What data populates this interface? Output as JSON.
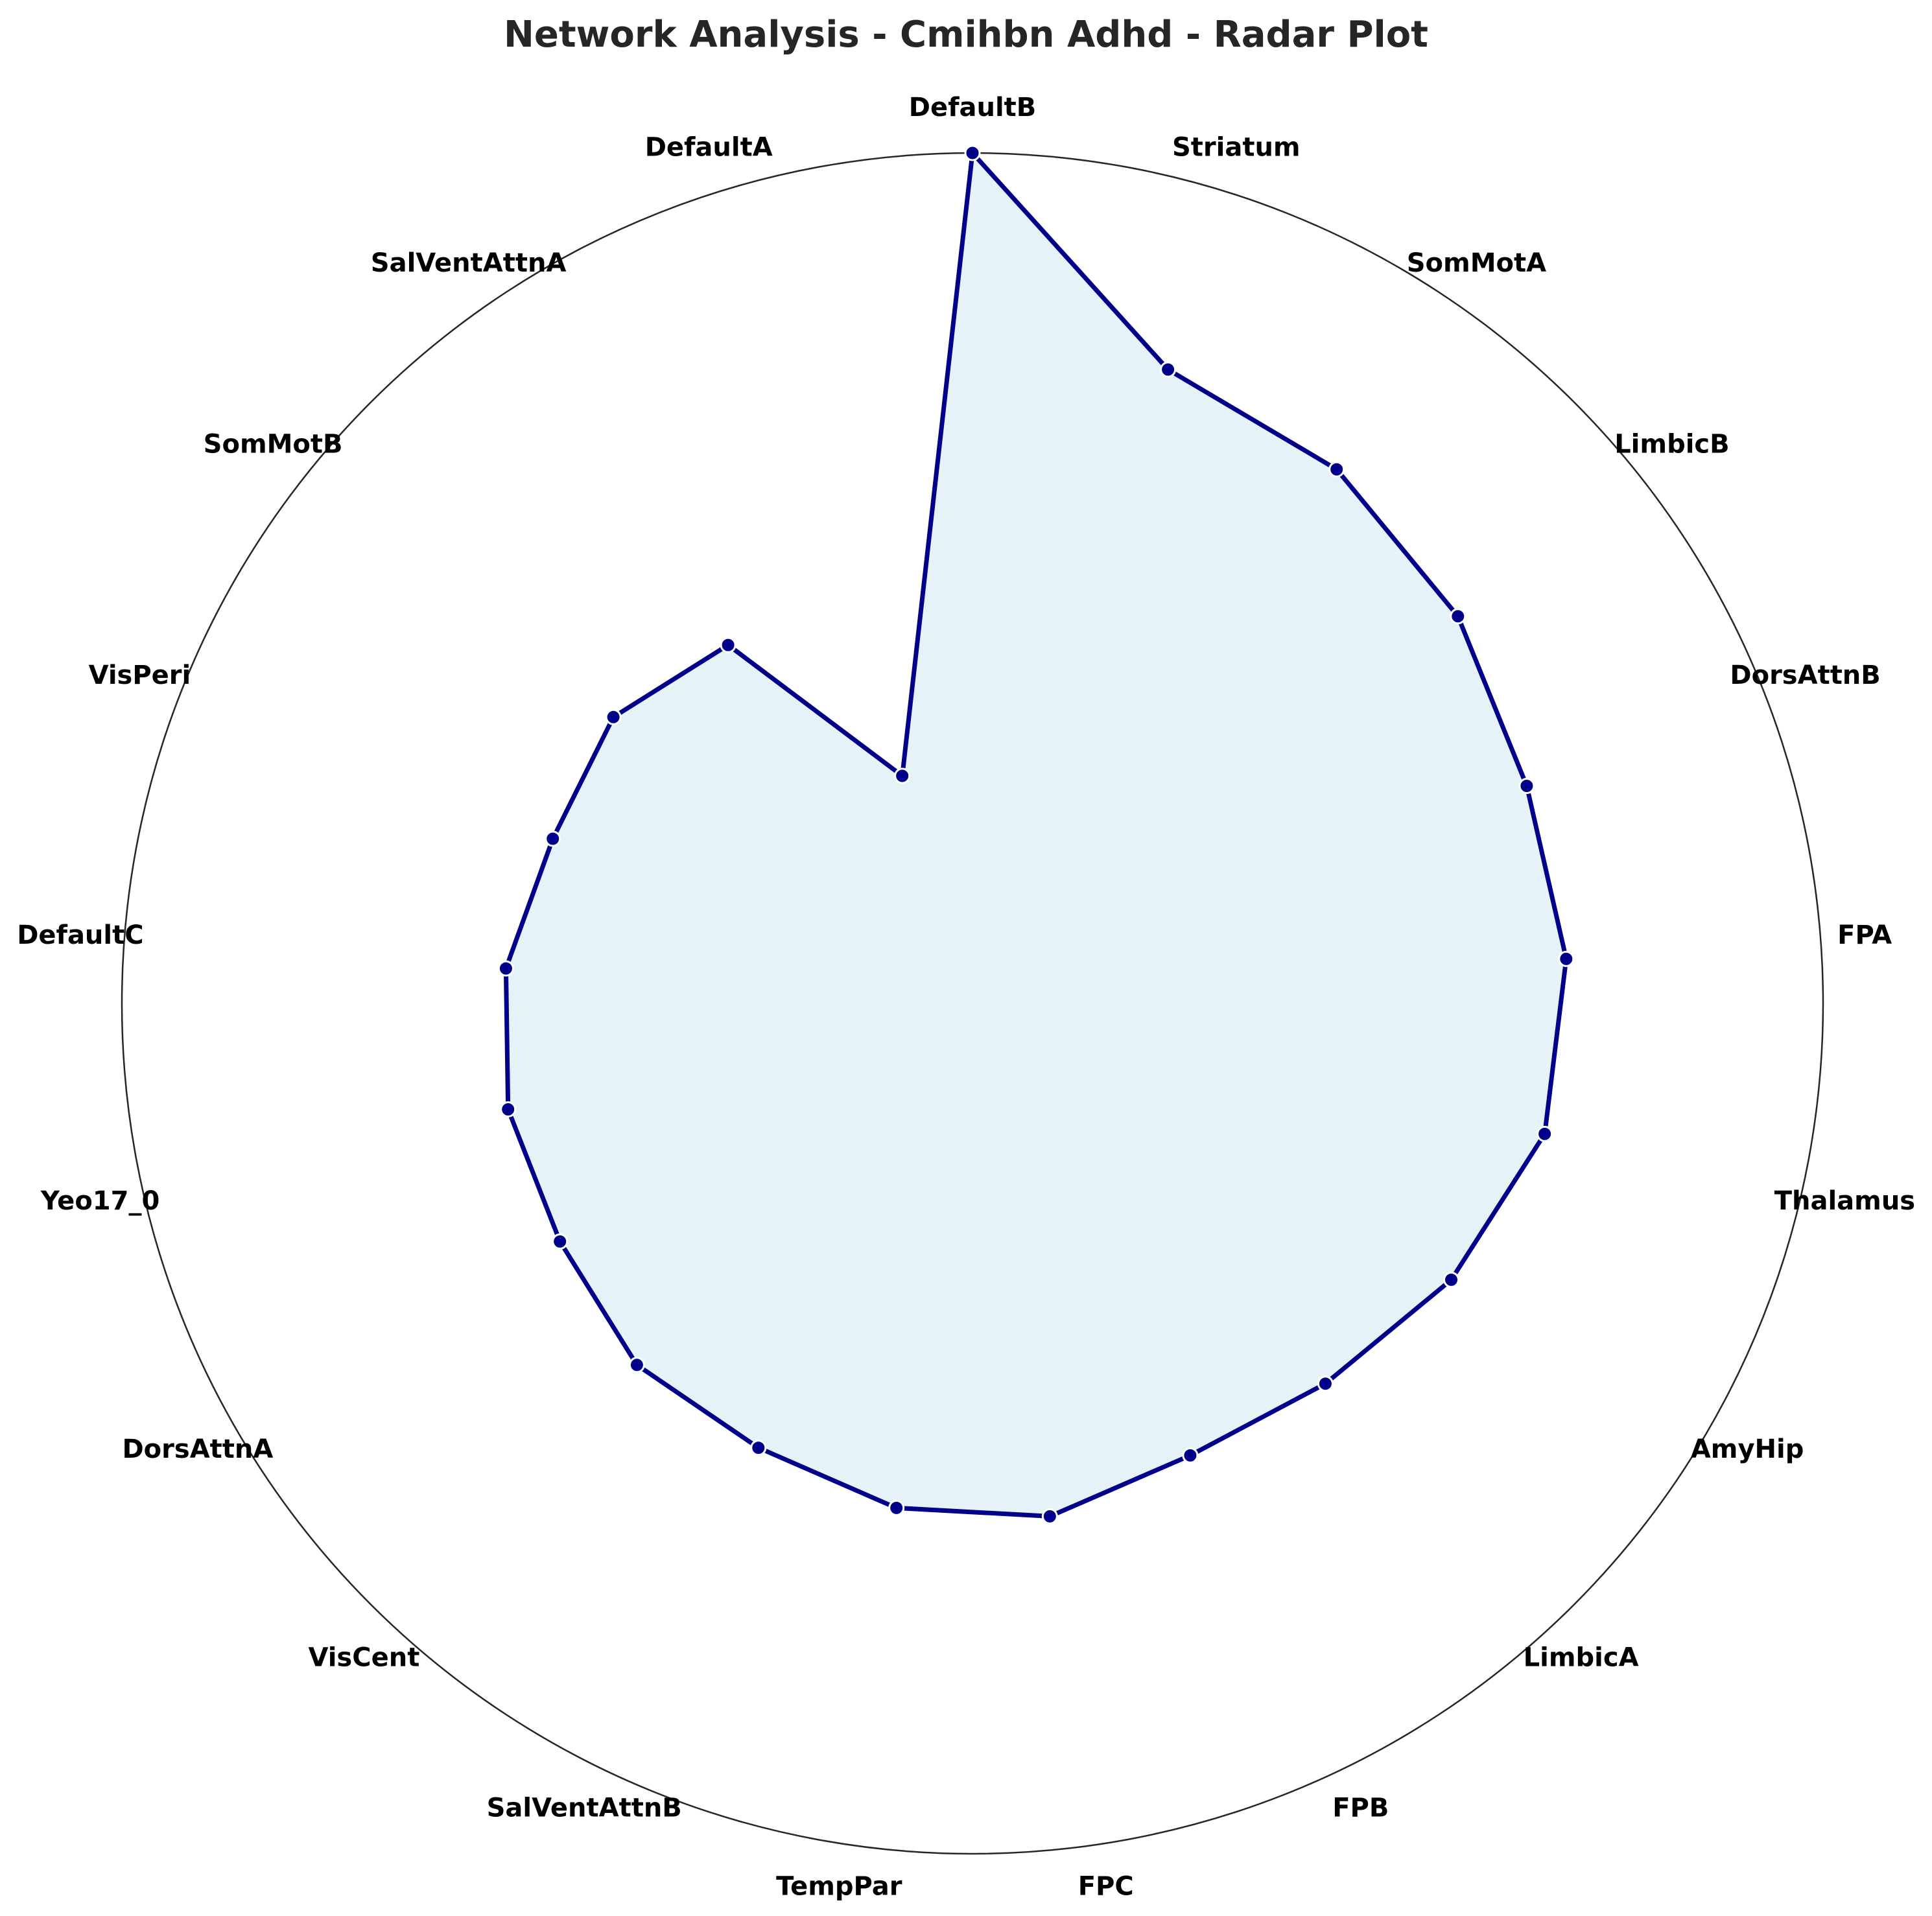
{
  "chart_data": {
    "type": "radar",
    "title": "Network Analysis - Cmihbn Adhd - Radar Plot",
    "categories": [
      "DefaultB",
      "Striatum",
      "SomMotA",
      "LimbicB",
      "DorsAttnB",
      "FPA",
      "Thalamus",
      "AmyHip",
      "LimbicA",
      "FPB",
      "FPC",
      "TempPar",
      "SalVentAttnB",
      "VisCent",
      "DorsAttnA",
      "Yeo17_0",
      "DefaultC",
      "VisPeri",
      "SomMotB",
      "SalVentAttnA",
      "DefaultA"
    ],
    "series": [
      {
        "values": [
          1.0,
          0.78,
          0.76,
          0.73,
          0.7,
          0.7,
          0.69,
          0.65,
          0.61,
          0.59,
          0.61,
          0.6,
          0.58,
          0.58,
          0.56,
          0.56,
          0.55,
          0.53,
          0.54,
          0.51,
          0.28
        ]
      }
    ],
    "rlim": [
      0,
      1.0
    ],
    "grid": false,
    "colors": {
      "line": "#00008b",
      "fill": "#add8e6",
      "marker": "#00008b",
      "marker_edge": "#ffffff",
      "outer_circle": "#262626"
    }
  }
}
